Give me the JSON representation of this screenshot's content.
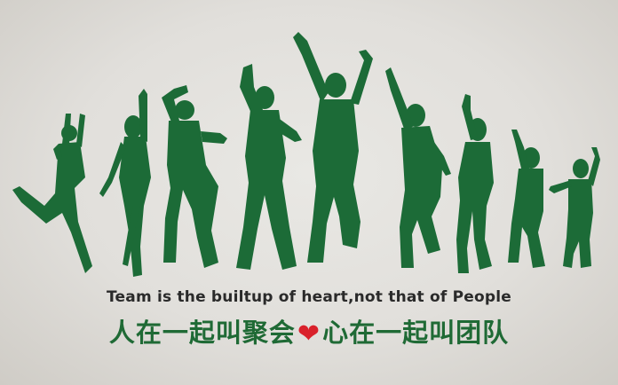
{
  "colors": {
    "figures": "#1c6b37",
    "heart": "#d9212b",
    "english_text": "#2a2a2a",
    "chinese_text": "#1f6a35",
    "wall": "#e6e4e0"
  },
  "slogan": {
    "english": "Team is the builtup of heart,not that of People",
    "chinese_left": "人在一起叫聚会",
    "heart_icon": "heart-icon",
    "chinese_right": "心在一起叫团队"
  }
}
